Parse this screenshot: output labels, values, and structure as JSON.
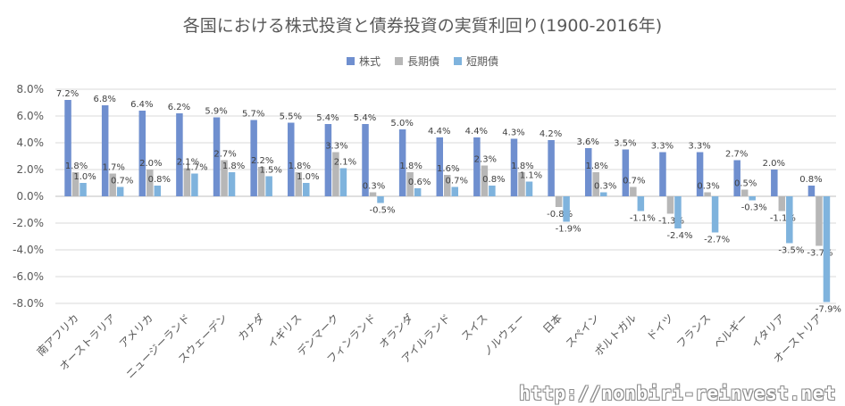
{
  "chart_data": {
    "type": "bar",
    "title": "各国における株式投資と債券投資の実質利回り(1900-2016年)",
    "categories": [
      "南アフリカ",
      "オーストラリア",
      "アメリカ",
      "ニュージーランド",
      "スウェーデン",
      "カナダ",
      "イギリス",
      "デンマーク",
      "フィンランド",
      "オランダ",
      "アイルランド",
      "スイス",
      "ノルウェー",
      "日本",
      "スペイン",
      "ポルトガル",
      "ドイツ",
      "フランス",
      "ベルギー",
      "イタリア",
      "オーストリア"
    ],
    "series": [
      {
        "name": "株式",
        "color": "#6f8fcf",
        "values": [
          7.2,
          6.8,
          6.4,
          6.2,
          5.9,
          5.7,
          5.5,
          5.4,
          5.4,
          5.0,
          4.4,
          4.4,
          4.3,
          4.2,
          3.6,
          3.5,
          3.3,
          3.3,
          2.7,
          2.0,
          0.8
        ]
      },
      {
        "name": "長期債",
        "color": "#b7b7b7",
        "values": [
          1.8,
          1.7,
          2.0,
          2.1,
          2.7,
          2.2,
          1.8,
          3.3,
          0.3,
          1.8,
          1.6,
          2.3,
          1.8,
          -0.8,
          1.8,
          0.7,
          -1.3,
          0.3,
          0.5,
          -1.1,
          -3.7
        ]
      },
      {
        "name": "短期債",
        "color": "#7fb3dd",
        "values": [
          1.0,
          0.7,
          0.8,
          1.7,
          1.8,
          1.5,
          1.0,
          2.1,
          -0.5,
          0.6,
          0.7,
          0.8,
          1.1,
          -1.9,
          0.3,
          -1.1,
          -2.4,
          -2.7,
          -0.3,
          -3.5,
          -7.9
        ]
      }
    ],
    "data_labels": [
      [
        "7.2%",
        "6.8%",
        "6.4%",
        "6.2%",
        "5.9%",
        "5.7%",
        "5.5%",
        "5.4%",
        "5.4%",
        "5.0%",
        "4.4%",
        "4.4%",
        "4.3%",
        "4.2%",
        "3.6%",
        "3.5%",
        "3.3%",
        "3.3%",
        "2.7%",
        "2.0%",
        "0.8%"
      ],
      [
        "1.8%",
        "1.7%",
        "2.0%",
        "2.1%",
        "2.7%",
        "2.2%",
        "1.8%",
        "3.3%",
        "0.3%",
        "1.8%",
        "1.6%",
        "2.3%",
        "1.8%",
        "-0.8%",
        "1.8%",
        "0.7%",
        "-1.3%",
        "0.3%",
        "0.5%",
        "-1.1%",
        "-3.7%"
      ],
      [
        "1.0%",
        "0.7%",
        "0.8%",
        "1.7%",
        "1.8%",
        "1.5%",
        "1.0%",
        "2.1%",
        "-0.5%",
        "0.6%",
        "0.7%",
        "0.8%",
        "1.1%",
        "-1.9%",
        "0.3%",
        "-1.1%",
        "-2.4%",
        "-2.7%",
        "-0.3%",
        "-3.5%",
        "-7.9%"
      ]
    ],
    "y_ticks": [
      -8,
      -6,
      -4,
      -2,
      0,
      2,
      4,
      6,
      8
    ],
    "y_tick_labels": [
      "-8.0%",
      "-6.0%",
      "-4.0%",
      "-2.0%",
      "0.0%",
      "2.0%",
      "4.0%",
      "6.0%",
      "8.0%"
    ],
    "ylim": [
      -8,
      8
    ],
    "grid": true,
    "legend": "top-center"
  },
  "watermark": "http://nonbiri-reinvest.net"
}
